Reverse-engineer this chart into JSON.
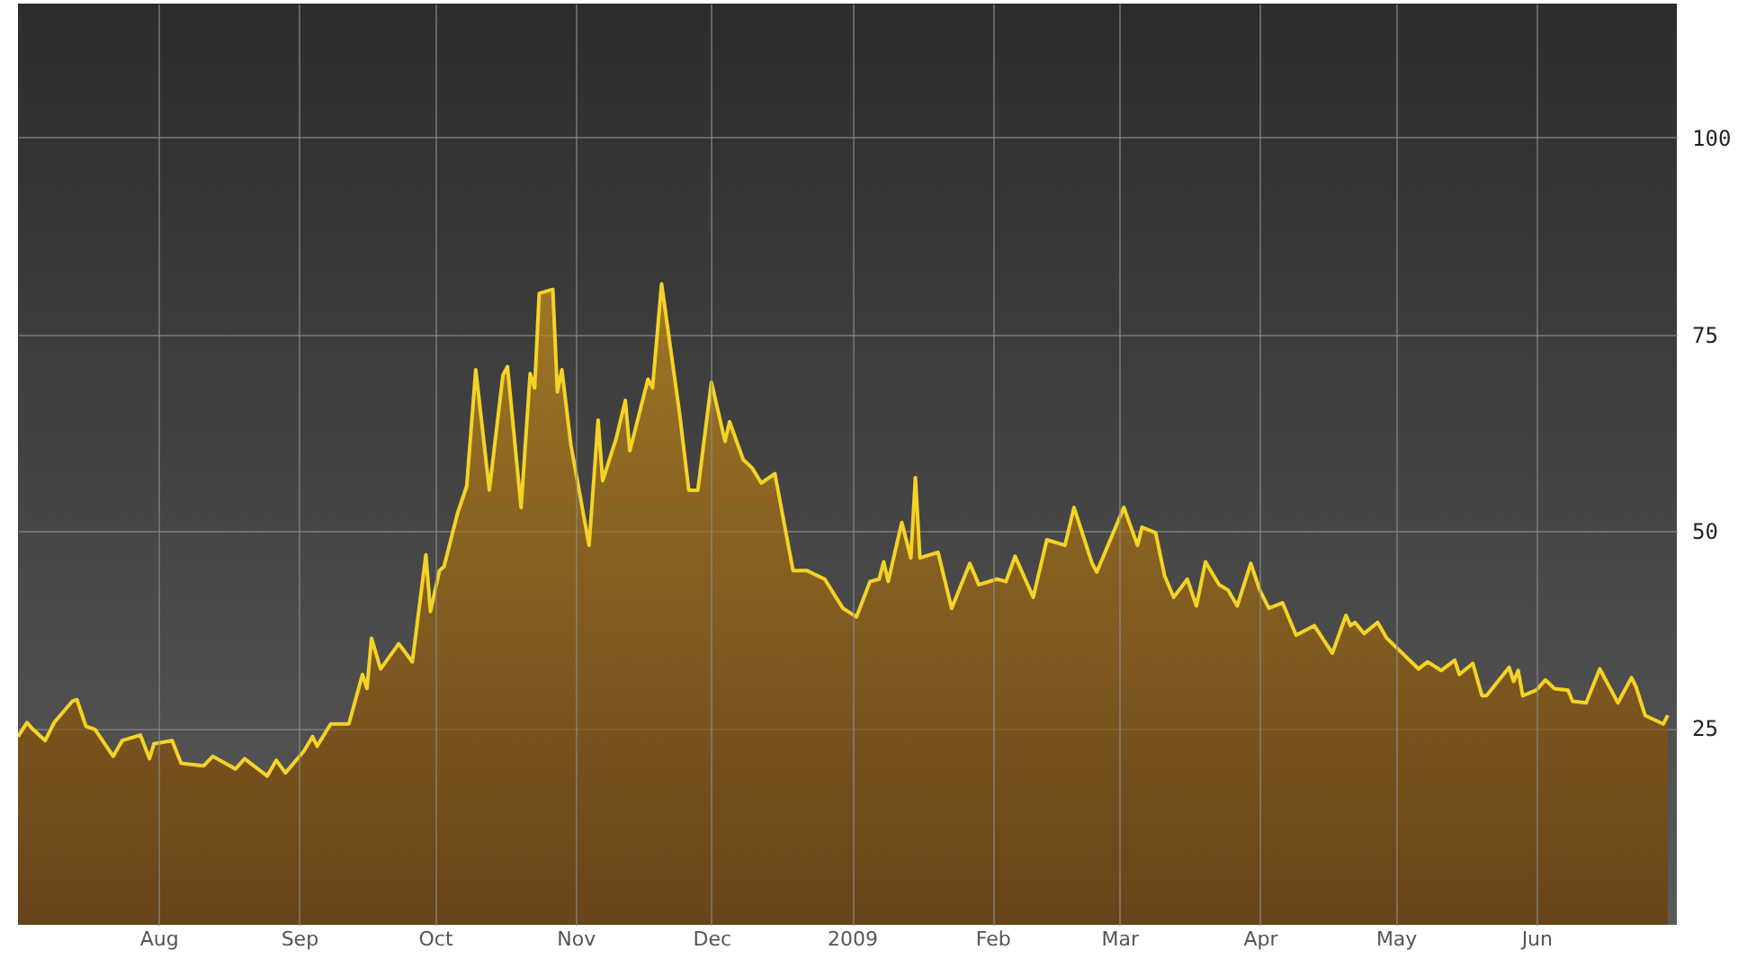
{
  "chart_data": {
    "type": "area",
    "x": [
      "2008-07-01",
      "2008-07-03",
      "2008-07-04",
      "2008-07-07",
      "2008-07-09",
      "2008-07-13",
      "2008-07-14",
      "2008-07-16",
      "2008-07-18",
      "2008-07-22",
      "2008-07-24",
      "2008-07-28",
      "2008-07-30",
      "2008-07-31",
      "2008-08-04",
      "2008-08-06",
      "2008-08-11",
      "2008-08-13",
      "2008-08-18",
      "2008-08-20",
      "2008-08-25",
      "2008-08-27",
      "2008-08-29",
      "2008-09-02",
      "2008-09-04",
      "2008-09-05",
      "2008-09-08",
      "2008-09-12",
      "2008-09-15",
      "2008-09-16",
      "2008-09-17",
      "2008-09-19",
      "2008-09-23",
      "2008-09-26",
      "2008-09-29",
      "2008-09-30",
      "2008-10-02",
      "2008-10-03",
      "2008-10-06",
      "2008-10-08",
      "2008-10-10",
      "2008-10-13",
      "2008-10-16",
      "2008-10-17",
      "2008-10-20",
      "2008-10-22",
      "2008-10-23",
      "2008-10-24",
      "2008-10-27",
      "2008-10-28",
      "2008-10-29",
      "2008-10-31",
      "2008-11-04",
      "2008-11-06",
      "2008-11-07",
      "2008-11-10",
      "2008-11-12",
      "2008-11-13",
      "2008-11-17",
      "2008-11-18",
      "2008-11-20",
      "2008-11-24",
      "2008-11-26",
      "2008-11-28",
      "2008-12-01",
      "2008-12-04",
      "2008-12-05",
      "2008-12-08",
      "2008-12-10",
      "2008-12-12",
      "2008-12-15",
      "2008-12-19",
      "2008-12-22",
      "2008-12-26",
      "2008-12-30",
      "2009-01-02",
      "2009-01-05",
      "2009-01-07",
      "2009-01-08",
      "2009-01-09",
      "2009-01-12",
      "2009-01-14",
      "2009-01-15",
      "2009-01-16",
      "2009-01-20",
      "2009-01-23",
      "2009-01-27",
      "2009-01-29",
      "2009-02-02",
      "2009-02-04",
      "2009-02-06",
      "2009-02-10",
      "2009-02-13",
      "2009-02-17",
      "2009-02-19",
      "2009-02-23",
      "2009-02-24",
      "2009-03-02",
      "2009-03-05",
      "2009-03-06",
      "2009-03-09",
      "2009-03-11",
      "2009-03-13",
      "2009-03-16",
      "2009-03-18",
      "2009-03-20",
      "2009-03-23",
      "2009-03-25",
      "2009-03-27",
      "2009-03-30",
      "2009-04-01",
      "2009-04-03",
      "2009-04-06",
      "2009-04-09",
      "2009-04-13",
      "2009-04-17",
      "2009-04-20",
      "2009-04-21",
      "2009-04-22",
      "2009-04-24",
      "2009-04-27",
      "2009-04-29",
      "2009-05-06",
      "2009-05-08",
      "2009-05-11",
      "2009-05-14",
      "2009-05-15",
      "2009-05-18",
      "2009-05-20",
      "2009-05-21",
      "2009-05-26",
      "2009-05-27",
      "2009-05-28",
      "2009-05-29",
      "2009-06-01",
      "2009-06-03",
      "2009-06-05",
      "2009-06-08",
      "2009-06-09",
      "2009-06-12",
      "2009-06-15",
      "2009-06-19",
      "2009-06-22",
      "2009-06-23",
      "2009-06-25",
      "2009-06-29",
      "2009-06-30"
    ],
    "series": [
      {
        "color": "#f5d325",
        "values": [
          23.9,
          25.7,
          25,
          23.4,
          25.7,
          28.4,
          28.6,
          25.2,
          24.8,
          21.4,
          23.4,
          24.1,
          21.1,
          23,
          23.4,
          20.5,
          20.2,
          21.4,
          19.8,
          21.1,
          18.9,
          20.9,
          19.3,
          22,
          23.9,
          22.7,
          25.5,
          25.5,
          31.8,
          30,
          36.4,
          32.5,
          35.7,
          33.4,
          47,
          39.8,
          45,
          45.5,
          52.3,
          55.7,
          70.5,
          55.2,
          69.8,
          70.9,
          53,
          70,
          68.2,
          80.2,
          80.7,
          67.7,
          70.5,
          60.9,
          48.2,
          64.1,
          56.4,
          61.8,
          66.6,
          60.2,
          69.3,
          68.2,
          81.4,
          64.8,
          55.2,
          55.2,
          68.9,
          61.4,
          63.9,
          59.1,
          58,
          56.1,
          57.3,
          45,
          45,
          43.9,
          40.2,
          39.1,
          43.6,
          43.9,
          46.1,
          43.6,
          51.1,
          46.6,
          56.8,
          46.6,
          47.3,
          40.2,
          45.9,
          43.2,
          43.9,
          43.6,
          46.8,
          41.6,
          48.9,
          48.2,
          53,
          45.9,
          44.8,
          53,
          48.2,
          50.5,
          49.8,
          44.3,
          41.6,
          43.9,
          40.5,
          46.1,
          43.2,
          42.5,
          40.5,
          45.9,
          42.5,
          40.2,
          40.9,
          36.8,
          38,
          34.5,
          39.3,
          38,
          38.4,
          37,
          38.4,
          36.4,
          32.5,
          33.4,
          32.3,
          33.6,
          31.8,
          33.2,
          29.1,
          29.1,
          32.7,
          30.9,
          32.3,
          29.1,
          29.8,
          31.1,
          30,
          29.8,
          28.4,
          28.2,
          32.5,
          28.2,
          31.4,
          30.2,
          26.6,
          25.5,
          26.6
        ]
      }
    ],
    "xlim": [
      "2008-07-01",
      "2009-07-02"
    ],
    "xticks": [
      {
        "value": "2008-08-01",
        "label": "Aug"
      },
      {
        "value": "2008-09-01",
        "label": "Sep"
      },
      {
        "value": "2008-10-01",
        "label": "Oct"
      },
      {
        "value": "2008-11-01",
        "label": "Nov"
      },
      {
        "value": "2008-12-01",
        "label": "Dec"
      },
      {
        "value": "2009-01-01",
        "label": "2009"
      },
      {
        "value": "2009-02-01",
        "label": "Feb"
      },
      {
        "value": "2009-03-01",
        "label": "Mar"
      },
      {
        "value": "2009-04-01",
        "label": "Apr"
      },
      {
        "value": "2009-05-01",
        "label": "May"
      },
      {
        "value": "2009-06-01",
        "label": "Jun"
      }
    ],
    "ylim": [
      0,
      117
    ],
    "yticks": [
      25,
      50,
      75,
      100
    ],
    "grid": true
  }
}
